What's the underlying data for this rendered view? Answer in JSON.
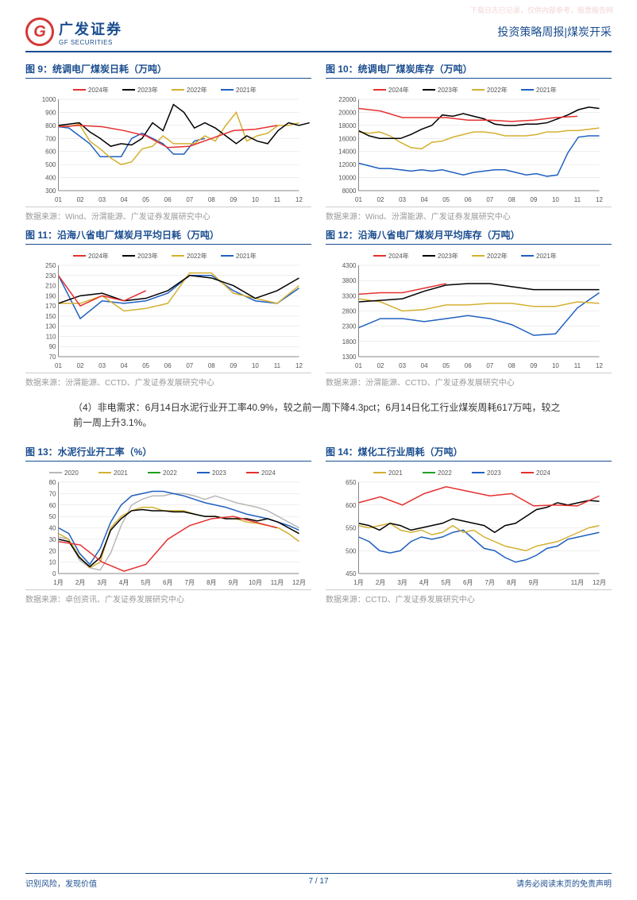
{
  "watermark": "下载日志已记录，仅供内部参考，股票报告网",
  "header": {
    "company_cn": "广发证券",
    "company_en": "GF SECURITIES",
    "logo_letter": "G",
    "title": "投资策略周报|煤炭开采"
  },
  "colors": {
    "y2024": "#e63030",
    "y2023": "#000000",
    "y2022": "#d4b030",
    "y2021": "#2060c0",
    "y2020": "#b8b8b8",
    "border": "#1a4d8f",
    "grid": "#dddddd",
    "axis": "#888888"
  },
  "charts": [
    {
      "id": "c9",
      "title": "图 9：统调电厂煤炭日耗（万吨）",
      "source": "数据来源：Wind、汾渭能源、广发证券发展研究中心",
      "legend": [
        {
          "label": "2024年",
          "color": "#e63030"
        },
        {
          "label": "2023年",
          "color": "#000000"
        },
        {
          "label": "2022年",
          "color": "#d4b030"
        },
        {
          "label": "2021年",
          "color": "#2060c0"
        }
      ],
      "ylim": [
        300,
        1000
      ],
      "ytick": 100,
      "xlabels": [
        "01",
        "02",
        "03",
        "04",
        "05",
        "06",
        "07",
        "08",
        "09",
        "10",
        "11",
        "12"
      ],
      "series": {
        "y2021": [
          790,
          780,
          720,
          660,
          560,
          560,
          560,
          700,
          740,
          700,
          660,
          580,
          580,
          680,
          700
        ],
        "y2022": [
          800,
          790,
          810,
          680,
          620,
          550,
          500,
          520,
          620,
          640,
          720,
          660,
          660,
          660,
          720,
          680,
          800,
          900,
          680,
          720,
          740,
          800,
          800,
          820
        ],
        "y2023": [
          800,
          810,
          820,
          750,
          700,
          640,
          660,
          650,
          700,
          820,
          760,
          960,
          900,
          780,
          820,
          780,
          720,
          660,
          720,
          680,
          660,
          760,
          820,
          800,
          820
        ],
        "y2024": [
          790,
          800,
          790,
          760,
          720,
          630,
          640,
          700,
          760,
          770,
          800
        ]
      }
    },
    {
      "id": "c10",
      "title": "图 10：统调电厂煤炭库存（万吨）",
      "source": "数据来源：Wind、汾渭能源、广发证券发展研究中心",
      "legend": [
        {
          "label": "2024年",
          "color": "#e63030"
        },
        {
          "label": "2023年",
          "color": "#000000"
        },
        {
          "label": "2022年",
          "color": "#d4b030"
        },
        {
          "label": "2021年",
          "color": "#2060c0"
        }
      ],
      "ylim": [
        8000,
        22000
      ],
      "ytick": 2000,
      "xlabels": [
        "01",
        "02",
        "03",
        "04",
        "05",
        "06",
        "07",
        "08",
        "09",
        "10",
        "11",
        "12"
      ],
      "series": {
        "y2021": [
          12200,
          11800,
          11400,
          11400,
          11200,
          11000,
          11200,
          11000,
          11200,
          10800,
          10400,
          10800,
          11000,
          11200,
          11200,
          10800,
          10400,
          10600,
          10200,
          10400,
          13800,
          16200,
          16400,
          16400
        ],
        "y2022": [
          17000,
          16800,
          17000,
          16400,
          15400,
          14600,
          14400,
          15400,
          15600,
          16200,
          16600,
          17000,
          17000,
          16800,
          16400,
          16400,
          16400,
          16600,
          17000,
          17000,
          17200,
          17200,
          17400,
          17600
        ],
        "y2023": [
          17200,
          16400,
          16000,
          16000,
          16000,
          16600,
          17400,
          18000,
          19600,
          19400,
          19800,
          19400,
          19000,
          18200,
          18000,
          18000,
          18200,
          18200,
          18400,
          19000,
          19600,
          20400,
          20800,
          20600
        ],
        "y2024": [
          20600,
          20200,
          19200,
          19200,
          19200,
          18800,
          18800,
          18600,
          18800,
          19200,
          19400
        ]
      }
    },
    {
      "id": "c11",
      "title": "图 11：沿海八省电厂煤炭月平均日耗（万吨）",
      "source": "数据来源：汾渭能源、CCTD、广发证券发展研究中心",
      "legend": [
        {
          "label": "2024年",
          "color": "#e63030"
        },
        {
          "label": "2023年",
          "color": "#000000"
        },
        {
          "label": "2022年",
          "color": "#d4b030"
        },
        {
          "label": "2021年",
          "color": "#2060c0"
        }
      ],
      "ylim": [
        70,
        250
      ],
      "ytick": 20,
      "xlabels": [
        "01",
        "02",
        "03",
        "04",
        "05",
        "06",
        "07",
        "08",
        "09",
        "10",
        "11",
        "12"
      ],
      "series": {
        "y2021": [
          230,
          145,
          180,
          175,
          180,
          195,
          230,
          230,
          200,
          180,
          175,
          205
        ],
        "y2022": [
          175,
          175,
          190,
          160,
          165,
          175,
          235,
          235,
          195,
          185,
          175,
          210
        ],
        "y2023": [
          175,
          190,
          195,
          180,
          185,
          200,
          230,
          225,
          210,
          185,
          200,
          225
        ],
        "y2024": [
          230,
          170,
          190,
          180,
          200
        ]
      }
    },
    {
      "id": "c12",
      "title": "图 12：沿海八省电厂煤炭月平均库存（万吨）",
      "source": "数据来源：汾渭能源、CCTD、广发证券发展研究中心",
      "legend": [
        {
          "label": "2024年",
          "color": "#e63030"
        },
        {
          "label": "2023年",
          "color": "#000000"
        },
        {
          "label": "2022年",
          "color": "#d4b030"
        },
        {
          "label": "2021年",
          "color": "#2060c0"
        }
      ],
      "ylim": [
        1300,
        4300
      ],
      "ytick": 500,
      "xlabels": [
        "01",
        "02",
        "03",
        "04",
        "05",
        "06",
        "07",
        "08",
        "09",
        "10",
        "11",
        "12"
      ],
      "series": {
        "y2021": [
          2250,
          2550,
          2550,
          2450,
          2550,
          2650,
          2550,
          2350,
          2000,
          2050,
          2900,
          3400
        ],
        "y2022": [
          3200,
          3100,
          2800,
          2850,
          3000,
          3000,
          3050,
          3050,
          2950,
          2950,
          3100,
          3050
        ],
        "y2023": [
          3100,
          3150,
          3200,
          3450,
          3650,
          3700,
          3700,
          3600,
          3500,
          3500,
          3500,
          3500
        ],
        "y2024": [
          3350,
          3400,
          3400,
          3550,
          3700
        ]
      }
    },
    {
      "id": "c13",
      "title": "图 13：水泥行业开工率（%）",
      "source": "数据来源：卓创资讯、广发证券发展研究中心",
      "legend": [
        {
          "label": "2020",
          "color": "#b8b8b8"
        },
        {
          "label": "2021",
          "color": "#d4b030"
        },
        {
          "label": "2022",
          "color": "#20a020"
        },
        {
          "label": "2023",
          "color": "#2060c0"
        },
        {
          "label": "2024",
          "color": "#e63030"
        }
      ],
      "ylim": [
        0,
        80
      ],
      "ytick": 10,
      "xlabels": [
        "1月",
        "2月",
        "3月",
        "4月",
        "5月",
        "6月",
        "7月",
        "8月",
        "9月",
        "10月",
        "11月",
        "12月"
      ],
      "series": {
        "y2020": [
          32,
          30,
          12,
          5,
          3,
          18,
          42,
          60,
          65,
          68,
          68,
          70,
          70,
          68,
          65,
          68,
          65,
          62,
          60,
          58,
          55,
          50,
          45,
          40
        ],
        "y2021": [
          40,
          35,
          18,
          8,
          22,
          45,
          60,
          68,
          70,
          72,
          72,
          70,
          68,
          65,
          62,
          60,
          58,
          55,
          52,
          50,
          48,
          45,
          42,
          38
        ],
        "y2022": [
          35,
          30,
          15,
          5,
          10,
          40,
          50,
          55,
          58,
          58,
          55,
          55,
          55,
          52,
          50,
          50,
          48,
          48,
          45,
          44,
          42,
          40,
          35,
          28
        ],
        "y2023": [
          30,
          28,
          14,
          6,
          14,
          38,
          48,
          55,
          56,
          55,
          55,
          54,
          54,
          52,
          50,
          50,
          48,
          48,
          48,
          46,
          48,
          45,
          40,
          35
        ],
        "y2024": [
          28,
          25,
          10,
          2,
          8,
          30,
          42,
          48,
          50,
          45,
          40
        ]
      }
    },
    {
      "id": "c14",
      "title": "图 14：煤化工行业周耗（万吨）",
      "source": "数据来源：CCTD、广发证券发展研究中心",
      "legend": [
        {
          "label": "2021",
          "color": "#d4b030"
        },
        {
          "label": "2022",
          "color": "#20a020"
        },
        {
          "label": "2023",
          "color": "#2060c0"
        },
        {
          "label": "2024",
          "color": "#e63030"
        }
      ],
      "ylim": [
        450,
        650
      ],
      "ytick": 50,
      "xlabels": [
        "1月",
        "2月",
        "3月",
        "4月",
        "5月",
        "6月",
        "7月",
        "8月",
        "9月",
        "",
        "11月",
        "12月"
      ],
      "series": {
        "y2021": [
          530,
          520,
          500,
          495,
          500,
          520,
          530,
          525,
          530,
          540,
          545,
          525,
          505,
          500,
          485,
          475,
          480,
          490,
          505,
          510,
          525,
          530,
          535,
          540
        ],
        "y2022": [
          555,
          550,
          555,
          560,
          545,
          540,
          545,
          535,
          540,
          555,
          540,
          545,
          530,
          520,
          510,
          505,
          500,
          510,
          515,
          520,
          530,
          540,
          550,
          555
        ],
        "y2023": [
          560,
          555,
          545,
          560,
          555,
          545,
          550,
          555,
          560,
          570,
          565,
          560,
          555,
          540,
          555,
          560,
          575,
          590,
          595,
          605,
          600,
          605,
          610,
          608
        ],
        "y2024": [
          605,
          618,
          600,
          625,
          640,
          630,
          620,
          625,
          598,
          600,
          598,
          620
        ]
      }
    }
  ],
  "body_text": "（4）非电需求：6月14日水泥行业开工率40.9%，较之前一周下降4.3pct；6月14日化工行业煤炭周耗617万吨，较之前一周上升3.1%。",
  "footer": {
    "left": "识别风险，发现价值",
    "right": "请务必阅读末页的免责声明",
    "page": "7 / 17"
  }
}
